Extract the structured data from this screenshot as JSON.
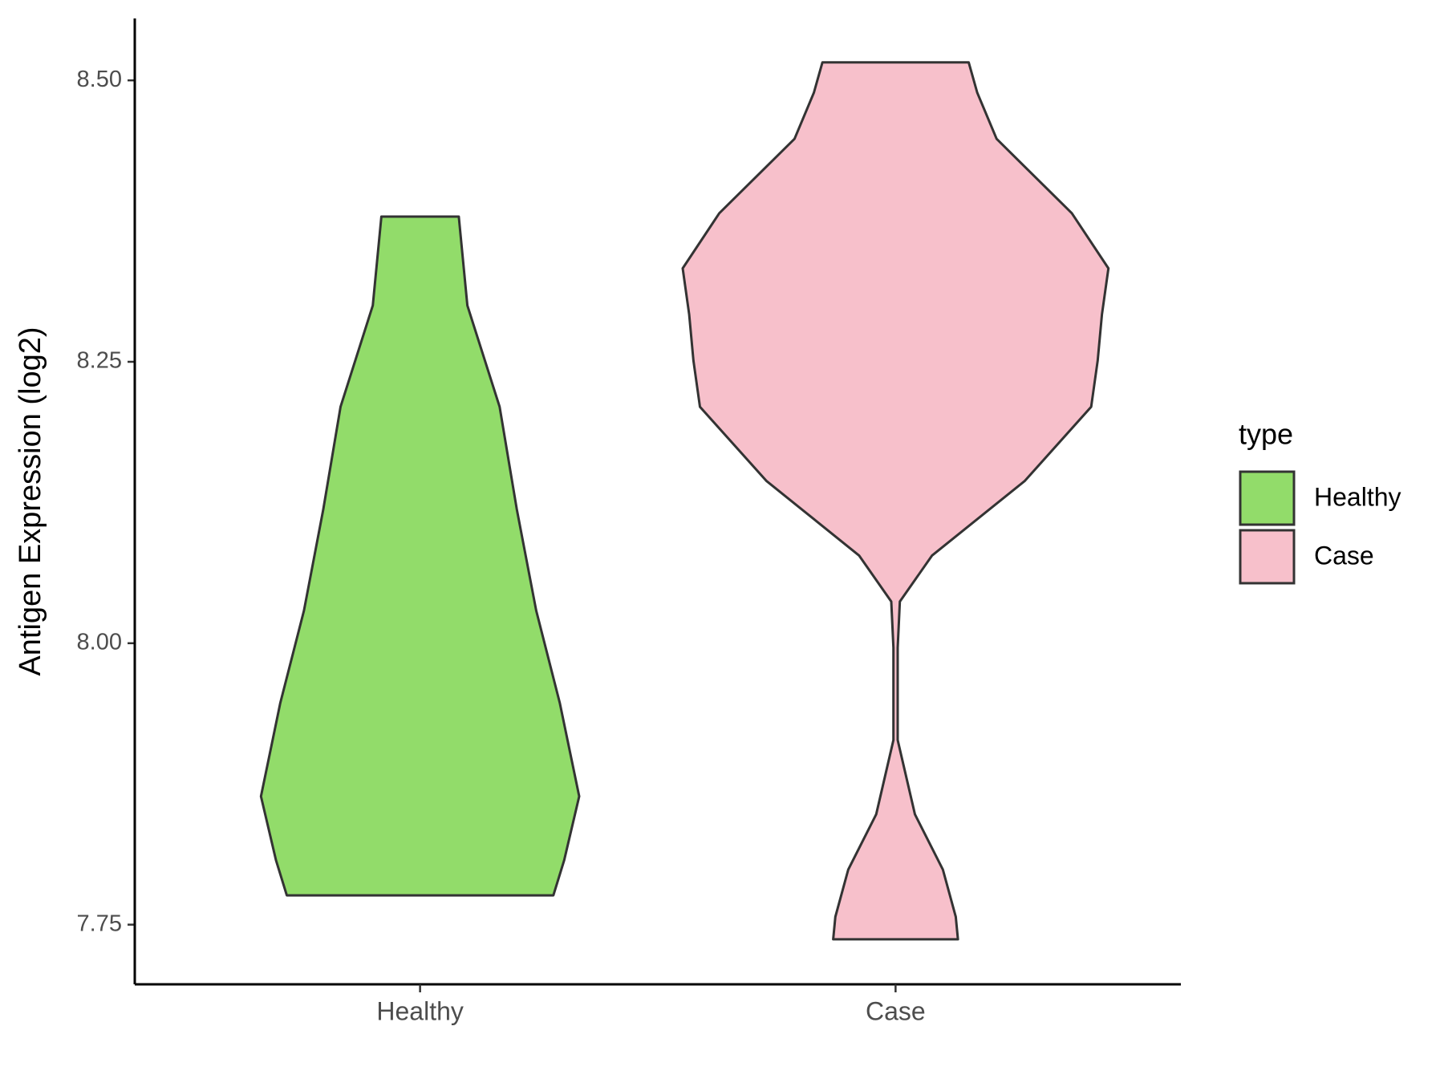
{
  "chart_data": {
    "type": "violin",
    "y_label": "Antigen Expression (log2)",
    "categories": [
      "Healthy",
      "Case"
    ],
    "legend_title": "type",
    "legend_position": "right",
    "ylim": [
      7.697,
      8.555
    ],
    "yticks": [
      {
        "value": 7.75,
        "label": "7.75"
      },
      {
        "value": 8.0,
        "label": "8.00"
      },
      {
        "value": 8.25,
        "label": "8.25"
      },
      {
        "value": 8.5,
        "label": "8.50"
      }
    ],
    "series": [
      {
        "name": "Healthy",
        "color": "#92dc6a",
        "y": [
          8.379,
          8.3,
          8.21,
          8.119,
          8.029,
          7.947,
          7.864,
          7.807,
          7.776
        ],
        "density": [
          0.18,
          0.22,
          0.37,
          0.45,
          0.54,
          0.65,
          0.74,
          0.67,
          0.62
        ]
      },
      {
        "name": "Case",
        "color": "#f7c0cb",
        "y": [
          8.516,
          8.489,
          8.448,
          8.382,
          8.333,
          8.292,
          8.251,
          8.21,
          8.144,
          8.078,
          8.037,
          7.996,
          7.914,
          7.848,
          7.799,
          7.757,
          7.737
        ],
        "density": [
          0.34,
          0.38,
          0.47,
          0.82,
          0.99,
          0.96,
          0.94,
          0.91,
          0.6,
          0.17,
          0.02,
          0.01,
          0.01,
          0.09,
          0.22,
          0.28,
          0.29
        ]
      }
    ]
  }
}
